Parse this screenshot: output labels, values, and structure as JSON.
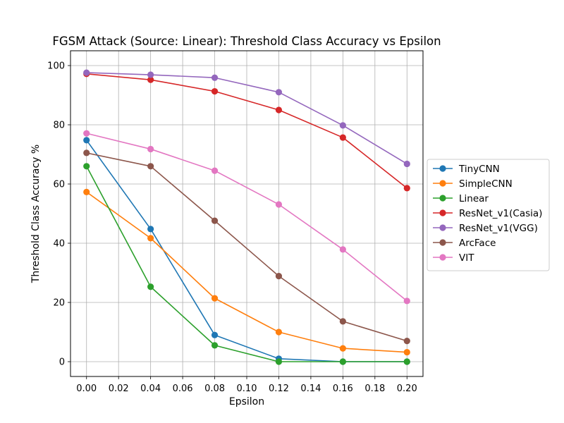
{
  "chart_data": {
    "type": "line",
    "title": "FGSM Attack (Source: Linear): Threshold Class Accuracy vs Epsilon",
    "xlabel": "Epsilon",
    "ylabel": "Threshold Class Accuracy %",
    "xlim": [
      -0.01,
      0.21
    ],
    "ylim": [
      -5,
      105
    ],
    "grid": true,
    "legend_position": "center-right (outside plot)",
    "x": [
      0.0,
      0.04,
      0.08,
      0.12,
      0.16,
      0.2
    ],
    "x_ticks": [
      "0.00",
      "0.02",
      "0.04",
      "0.06",
      "0.08",
      "0.10",
      "0.12",
      "0.14",
      "0.16",
      "0.18",
      "0.20"
    ],
    "y_ticks": [
      "0",
      "20",
      "40",
      "60",
      "80",
      "100"
    ],
    "series": [
      {
        "name": "TinyCNN",
        "color": "#1f77b4",
        "values": [
          74.8,
          44.8,
          9.0,
          1.0,
          0.0,
          0.0
        ]
      },
      {
        "name": "SimpleCNN",
        "color": "#ff7f0e",
        "values": [
          57.3,
          41.7,
          21.4,
          10.0,
          4.5,
          3.2
        ]
      },
      {
        "name": "Linear",
        "color": "#2ca02c",
        "values": [
          66.0,
          25.3,
          5.5,
          0.0,
          0.0,
          0.0
        ]
      },
      {
        "name": "ResNet_v1(Casia)",
        "color": "#d62728",
        "values": [
          97.2,
          95.2,
          91.3,
          85.0,
          75.7,
          58.6
        ]
      },
      {
        "name": "ResNet_v1(VGG)",
        "color": "#9467bd",
        "values": [
          97.6,
          96.9,
          95.9,
          91.0,
          79.8,
          66.8
        ]
      },
      {
        "name": "ArcFace",
        "color": "#8c564b",
        "values": [
          70.5,
          66.0,
          47.6,
          28.9,
          13.6,
          7.0
        ]
      },
      {
        "name": "VIT",
        "color": "#e377c2",
        "values": [
          77.1,
          71.8,
          64.5,
          53.1,
          37.9,
          20.5
        ]
      }
    ]
  }
}
